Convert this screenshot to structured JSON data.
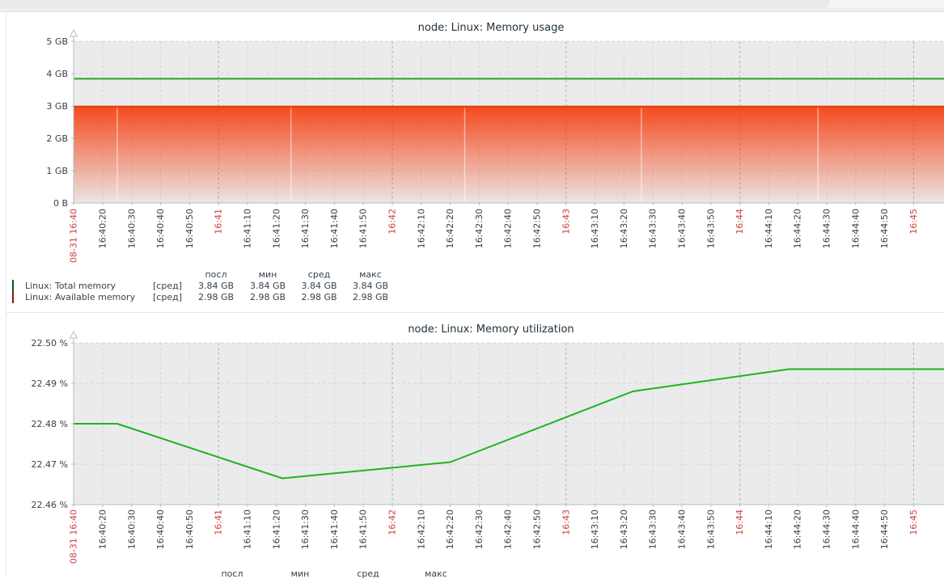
{
  "page": {
    "locale": "ru",
    "legend_note": "столбцы легенды: посл, мин, сред, макс"
  },
  "colors": {
    "plot_bg": "#ebebeb",
    "grid": "#d3d8db",
    "grid_strong": "#a6b1b8",
    "axis": "#b3bec5",
    "tick_text": "#37414b",
    "tick_text_red": "#cc4040",
    "title_text": "#22313c",
    "green_total": "#2da12b",
    "green_util": "#1eb41e",
    "red_area": "#f63100",
    "red_area_line": "#e23c08"
  },
  "time_axis": {
    "start_label": "08-31 16:40",
    "labels": [
      "08-31 16:40",
      "16:40:20",
      "16:40:30",
      "16:40:40",
      "16:40:50",
      "16:41",
      "16:41:10",
      "16:41:20",
      "16:41:30",
      "16:41:40",
      "16:41:50",
      "16:42",
      "16:42:10",
      "16:42:20",
      "16:42:30",
      "16:42:40",
      "16:42:50",
      "16:43",
      "16:43:10",
      "16:43:20",
      "16:43:30",
      "16:43:40",
      "16:43:50",
      "16:44",
      "16:44:10",
      "16:44:20",
      "16:44:30",
      "16:44:40",
      "16:44:50",
      "16:45"
    ]
  },
  "chart_data": [
    {
      "type": "line",
      "title": "node: Linux: Memory usage",
      "ylim": [
        0,
        5
      ],
      "y_unit": "GB",
      "y_tick_labels": [
        "5 GB",
        "4 GB",
        "3 GB",
        "2 GB",
        "1 GB",
        "0 B"
      ],
      "y_tick_values": [
        5,
        4,
        3,
        2,
        1,
        0
      ],
      "grid": true,
      "legend_position": "bottom",
      "series": [
        {
          "name": "Linux: Total memory",
          "color": "#2da12b",
          "draw": "line",
          "points": [
            {
              "t": "16:40:10",
              "v": 3.84
            },
            {
              "t": "16:45:11",
              "v": 3.84
            }
          ]
        },
        {
          "name": "Linux: Available memory",
          "color": "#f63100",
          "line_color": "#e23c08",
          "draw": "gradient-area",
          "points": [
            {
              "t": "16:40:10",
              "v": 2.98
            },
            {
              "t": "16:45:11",
              "v": 2.98
            }
          ]
        }
      ],
      "gap_marker_times": [
        "16:40:25",
        "16:41:25",
        "16:42:25",
        "16:43:26",
        "16:44:27"
      ],
      "legend": {
        "headers": [
          "посл",
          "мин",
          "сред",
          "макс"
        ],
        "rows": [
          {
            "label": "Linux: Total memory",
            "func": "[сред]",
            "last": "3.84 GB",
            "min": "3.84 GB",
            "avg": "3.84 GB",
            "max": "3.84 GB"
          },
          {
            "label": "Linux: Available memory",
            "func": "[сред]",
            "last": "2.98 GB",
            "min": "2.98 GB",
            "avg": "2.98 GB",
            "max": "2.98 GB"
          }
        ]
      }
    },
    {
      "type": "line",
      "title": "node: Linux: Memory utilization",
      "ylim": [
        22.46,
        22.5
      ],
      "y_unit": "%",
      "y_tick_labels": [
        "22.50 %",
        "22.49 %",
        "22.48 %",
        "22.47 %",
        "22.46 %"
      ],
      "y_tick_values": [
        22.5,
        22.49,
        22.48,
        22.47,
        22.46
      ],
      "grid": true,
      "legend_position": "bottom",
      "series": [
        {
          "name": "Linux: Memory utilization",
          "color": "#1eb41e",
          "draw": "line",
          "points": [
            {
              "t": "16:40:10",
              "v": 22.48
            },
            {
              "t": "16:40:25",
              "v": 22.48
            },
            {
              "t": "16:41:22",
              "v": 22.4665
            },
            {
              "t": "16:42:20",
              "v": 22.4705
            },
            {
              "t": "16:43:23",
              "v": 22.488
            },
            {
              "t": "16:44:17",
              "v": 22.4935
            },
            {
              "t": "16:45:11",
              "v": 22.4935
            }
          ]
        }
      ],
      "legend": {
        "headers": [
          "посл",
          "мин",
          "сред",
          "макс"
        ],
        "rows": []
      }
    }
  ]
}
